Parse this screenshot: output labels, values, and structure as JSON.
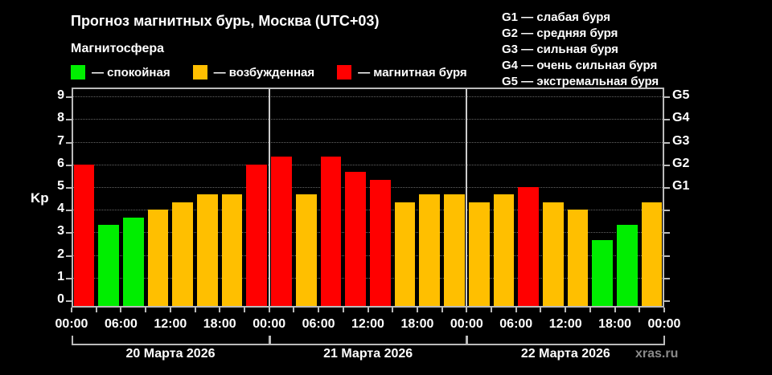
{
  "header": {
    "title": "Прогноз магнитных бурь, Москва (UTC+03)",
    "subtitle": "Магнитосфера"
  },
  "legend": [
    {
      "label": "— спокойная",
      "color": "#00ee00"
    },
    {
      "label": "— возбужденная",
      "color": "#ffbf00"
    },
    {
      "label": "— магнитная буря",
      "color": "#ff0000"
    }
  ],
  "g_legend": [
    "G1 — слабая буря",
    "G2 — средняя буря",
    "G3 — сильная буря",
    "G4 — очень сильная буря",
    "G5 — экстремальная буря"
  ],
  "watermark": "xras.ru",
  "colors": {
    "quiet": "#00ee00",
    "active": "#ffbf00",
    "storm": "#ff0000"
  },
  "chart_data": {
    "type": "bar",
    "title": "Прогноз магнитных бурь, Москва (UTC+03)",
    "ylabel": "Kp",
    "ylim": [
      0,
      9
    ],
    "yticks": [
      0,
      1,
      2,
      3,
      4,
      5,
      6,
      7,
      8,
      9
    ],
    "y2_ticks": {
      "5": "G1",
      "6": "G2",
      "7": "G3",
      "8": "G4",
      "9": "G5"
    },
    "grid": "horizontal dotted",
    "x_tick_labels": [
      "00:00",
      "06:00",
      "12:00",
      "18:00",
      "00:00",
      "06:00",
      "12:00",
      "18:00",
      "00:00",
      "06:00",
      "12:00",
      "18:00",
      "00:00"
    ],
    "days": [
      "20 Марта 2026",
      "21 Марта 2026",
      "22 Марта 2026"
    ],
    "categories": [
      "20 00-03",
      "20 03-06",
      "20 06-09",
      "20 09-12",
      "20 12-15",
      "20 15-18",
      "20 18-21",
      "20 21-24",
      "21 00-03",
      "21 03-06",
      "21 06-09",
      "21 09-12",
      "21 12-15",
      "21 15-18",
      "21 18-21",
      "21 21-24",
      "22 00-03",
      "22 03-06",
      "22 06-09",
      "22 09-12",
      "22 12-15",
      "22 15-18",
      "22 18-21",
      "22 21-24"
    ],
    "values": [
      6.0,
      3.33,
      3.67,
      4.0,
      4.33,
      4.67,
      4.67,
      6.0,
      6.33,
      4.67,
      6.33,
      5.67,
      5.33,
      4.33,
      4.67,
      4.67,
      4.33,
      4.67,
      5.0,
      4.33,
      4.0,
      2.67,
      3.33,
      4.33
    ],
    "levels": [
      "storm",
      "quiet",
      "quiet",
      "active",
      "active",
      "active",
      "active",
      "storm",
      "storm",
      "active",
      "storm",
      "storm",
      "storm",
      "active",
      "active",
      "active",
      "active",
      "active",
      "storm",
      "active",
      "active",
      "quiet",
      "quiet",
      "active"
    ]
  }
}
